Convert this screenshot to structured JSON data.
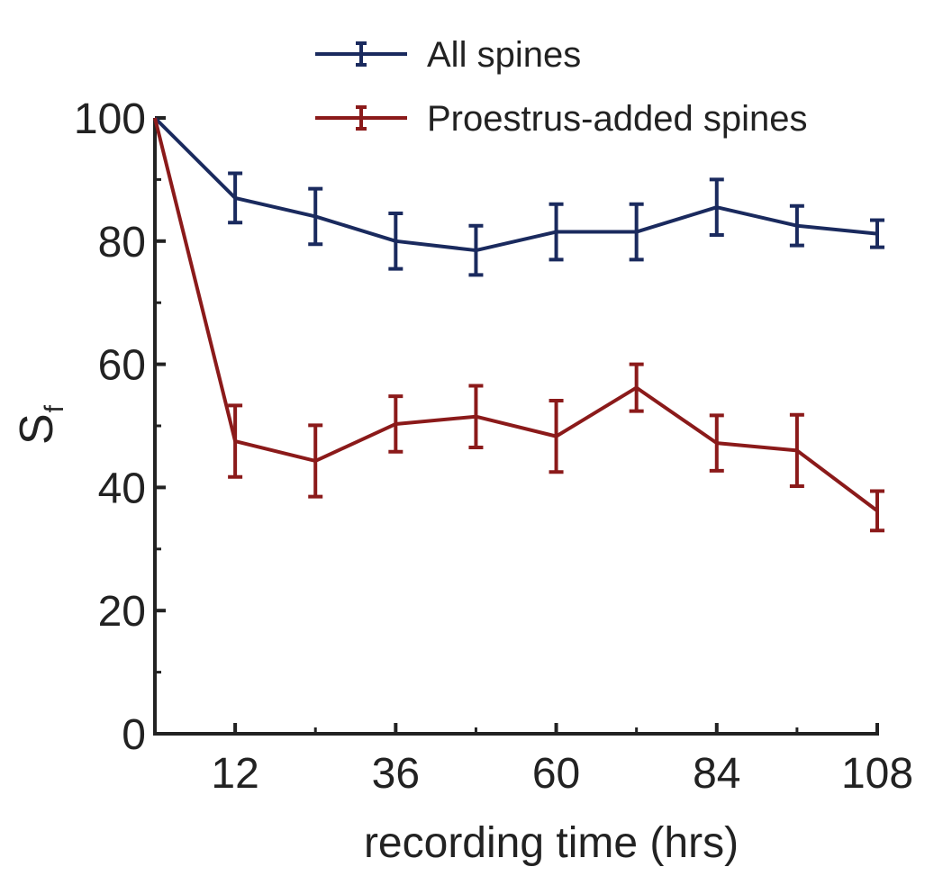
{
  "chart_data": {
    "type": "line",
    "xlabel": "recording time (hrs)",
    "ylabel": {
      "main": "S",
      "subscript": "f"
    },
    "xlim": [
      0,
      108
    ],
    "ylim": [
      0,
      100
    ],
    "xticks": [
      12,
      36,
      60,
      84,
      108
    ],
    "yticks": [
      0,
      20,
      40,
      60,
      80,
      100
    ],
    "x_minor_ticks": [
      24,
      48,
      72,
      96
    ],
    "y_minor_ticks": [
      10,
      30,
      50,
      70,
      90
    ],
    "grid": false,
    "legend_position": "top",
    "x": [
      0,
      12,
      24,
      36,
      48,
      60,
      72,
      84,
      96,
      108
    ],
    "series": [
      {
        "name": "All spines",
        "color": "#1a2a5e",
        "values": [
          100,
          87,
          84,
          80,
          78.5,
          81.5,
          81.5,
          85.5,
          82.5,
          81.2
        ],
        "errors": [
          0,
          4,
          4.5,
          4.5,
          4,
          4.5,
          4.5,
          4.5,
          3.2,
          2.2
        ]
      },
      {
        "name": "Proestrus-added spines",
        "color": "#8b1a1a",
        "values": [
          100,
          47.5,
          44.3,
          50.3,
          51.5,
          48.3,
          56.2,
          47.2,
          46,
          36.2
        ],
        "errors": [
          0,
          5.8,
          5.8,
          4.5,
          5,
          5.8,
          3.8,
          4.5,
          5.8,
          3.2
        ]
      }
    ]
  }
}
